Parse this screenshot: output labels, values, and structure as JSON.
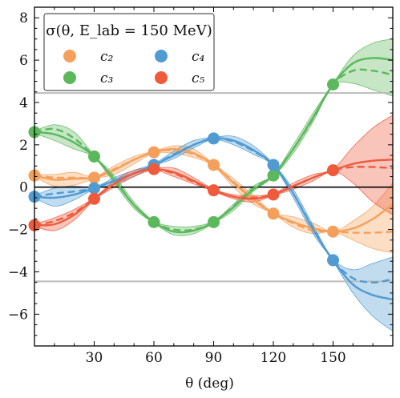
{
  "chart_data": {
    "type": "line",
    "xlabel": "θ (deg)",
    "ylabel": "",
    "xlim": [
      0,
      180
    ],
    "ylim": [
      -7.5,
      8.5
    ],
    "x_ticks": [
      30,
      60,
      90,
      120,
      150
    ],
    "y_ticks": [
      -6,
      -4,
      -2,
      0,
      2,
      4,
      6,
      8
    ],
    "grid": false,
    "reference_lines": [
      4.45,
      -4.45
    ],
    "legend": {
      "title": "σ(θ, E_lab = 150 MeV)",
      "placement": "top-left",
      "entries": [
        "c₂",
        "c₃",
        "c₄",
        "c₅"
      ]
    },
    "colors": {
      "c2": "#f5a05a",
      "c3": "#5cb85c",
      "c4": "#4f9bd2",
      "c5": "#ef5a3c",
      "zero_line": "#000000",
      "reference_line": "#bbbbbb"
    },
    "training_x": [
      0,
      30,
      60,
      90,
      120,
      150
    ],
    "series": [
      {
        "name": "c₂",
        "key": "c2",
        "points": [
          0.55,
          0.45,
          1.65,
          1.05,
          -1.25,
          -2.1
        ],
        "x": [
          0,
          10,
          20,
          30,
          40,
          50,
          60,
          70,
          80,
          90,
          100,
          110,
          120,
          130,
          140,
          150,
          160,
          170,
          180
        ],
        "solid": [
          0.55,
          0.35,
          0.4,
          0.45,
          0.8,
          1.3,
          1.65,
          1.8,
          1.6,
          1.05,
          0.2,
          -0.6,
          -1.25,
          -1.65,
          -1.95,
          -2.1,
          -1.95,
          -1.5,
          -0.8
        ],
        "dashed": [
          0.55,
          0.45,
          0.45,
          0.45,
          0.85,
          1.3,
          1.65,
          1.75,
          1.55,
          1.05,
          0.25,
          -0.55,
          -1.25,
          -1.7,
          -2.05,
          -2.1,
          -2.15,
          -2.15,
          -2.1
        ],
        "band_low": [
          0.5,
          0.05,
          0.1,
          0.4,
          0.6,
          1.1,
          1.6,
          1.6,
          1.4,
          1.0,
          0.0,
          -0.8,
          -1.25,
          -1.9,
          -2.2,
          -2.1,
          -2.5,
          -2.9,
          -3.1
        ],
        "band_high": [
          0.6,
          0.6,
          0.7,
          0.5,
          1.0,
          1.45,
          1.7,
          1.95,
          1.8,
          1.1,
          0.4,
          -0.4,
          -1.2,
          -1.4,
          -1.7,
          -2.1,
          -1.6,
          -0.9,
          0.2
        ]
      },
      {
        "name": "c₃",
        "key": "c3",
        "points": [
          2.6,
          1.45,
          -1.65,
          -1.65,
          0.55,
          4.85
        ],
        "x": [
          0,
          10,
          20,
          30,
          40,
          50,
          60,
          70,
          80,
          90,
          100,
          110,
          120,
          130,
          140,
          150,
          160,
          170,
          180
        ],
        "solid": [
          2.6,
          2.5,
          2.1,
          1.45,
          0.35,
          -0.85,
          -1.65,
          -2.1,
          -2.05,
          -1.65,
          -0.95,
          -0.1,
          0.55,
          1.8,
          3.3,
          4.85,
          5.85,
          6.1,
          6.0
        ],
        "dashed": [
          2.6,
          2.75,
          2.3,
          1.45,
          0.4,
          -0.85,
          -1.65,
          -2.0,
          -2.0,
          -1.65,
          -0.9,
          -0.05,
          0.6,
          1.8,
          3.25,
          4.85,
          5.5,
          5.5,
          5.3
        ],
        "band_low": [
          2.55,
          2.2,
          1.8,
          1.4,
          0.2,
          -1.0,
          -1.7,
          -2.25,
          -2.2,
          -1.7,
          -1.1,
          -0.2,
          0.5,
          1.6,
          3.1,
          4.8,
          4.9,
          4.6,
          4.3
        ],
        "band_high": [
          2.65,
          2.95,
          2.6,
          1.5,
          0.55,
          -0.7,
          -1.6,
          -1.85,
          -1.85,
          -1.6,
          -0.8,
          0.05,
          0.6,
          2.0,
          3.5,
          4.9,
          6.2,
          6.8,
          7.0
        ]
      },
      {
        "name": "c₄",
        "key": "c4",
        "points": [
          -0.45,
          -0.05,
          1.05,
          2.3,
          1.05,
          -3.45
        ],
        "x": [
          0,
          10,
          20,
          30,
          40,
          50,
          60,
          70,
          80,
          90,
          100,
          110,
          120,
          130,
          140,
          150,
          160,
          170,
          180
        ],
        "solid": [
          -0.45,
          -0.5,
          -0.35,
          -0.05,
          0.3,
          0.65,
          1.05,
          1.5,
          2.0,
          2.3,
          2.2,
          1.75,
          1.05,
          -0.3,
          -2.0,
          -3.45,
          -4.6,
          -5.1,
          -5.3
        ],
        "dashed": [
          -0.45,
          -0.3,
          -0.2,
          -0.05,
          0.3,
          0.65,
          1.05,
          1.55,
          2.0,
          2.3,
          2.15,
          1.7,
          1.05,
          -0.3,
          -1.95,
          -3.45,
          -4.3,
          -4.5,
          -4.35
        ],
        "band_low": [
          -0.5,
          -0.9,
          -0.6,
          -0.1,
          0.15,
          0.5,
          1.0,
          1.35,
          1.85,
          2.25,
          2.0,
          1.55,
          1.0,
          -0.5,
          -2.2,
          -3.5,
          -5.0,
          -6.1,
          -6.8
        ],
        "band_high": [
          -0.4,
          -0.05,
          0.05,
          0.0,
          0.45,
          0.8,
          1.1,
          1.7,
          2.2,
          2.35,
          2.4,
          1.95,
          1.1,
          -0.1,
          -1.8,
          -3.4,
          -3.9,
          -3.6,
          -3.3
        ]
      },
      {
        "name": "c₅",
        "key": "c5",
        "points": [
          -1.8,
          -0.55,
          0.85,
          -0.15,
          -0.35,
          0.8
        ],
        "x": [
          0,
          10,
          20,
          30,
          40,
          50,
          60,
          70,
          80,
          90,
          100,
          110,
          120,
          130,
          140,
          150,
          160,
          170,
          180
        ],
        "solid": [
          -1.8,
          -1.75,
          -1.3,
          -0.55,
          0.15,
          0.65,
          0.85,
          0.7,
          0.3,
          -0.15,
          -0.45,
          -0.55,
          -0.35,
          0.05,
          0.45,
          0.8,
          1.1,
          1.25,
          1.3
        ],
        "dashed": [
          -1.8,
          -1.6,
          -1.2,
          -0.55,
          0.15,
          0.65,
          0.85,
          0.65,
          0.25,
          -0.15,
          -0.45,
          -0.5,
          -0.35,
          0.05,
          0.45,
          0.8,
          0.95,
          0.95,
          0.9
        ],
        "band_low": [
          -1.85,
          -2.05,
          -1.55,
          -0.6,
          0.0,
          0.5,
          0.8,
          0.5,
          0.15,
          -0.2,
          -0.55,
          -0.7,
          -0.4,
          -0.1,
          0.3,
          0.75,
          0.2,
          -0.7,
          -1.3
        ],
        "band_high": [
          -1.75,
          -1.45,
          -1.05,
          -0.5,
          0.3,
          0.8,
          0.9,
          0.9,
          0.45,
          -0.1,
          -0.35,
          -0.4,
          -0.3,
          0.2,
          0.6,
          0.85,
          1.9,
          2.8,
          3.4
        ]
      }
    ]
  }
}
